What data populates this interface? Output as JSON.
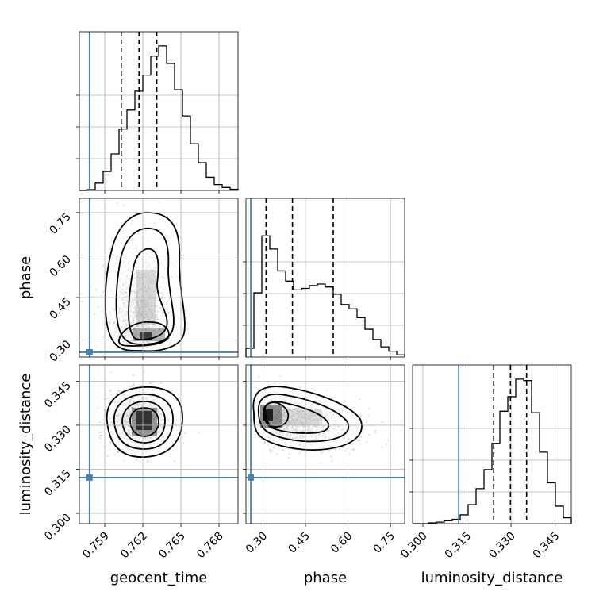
{
  "chart_data": {
    "type": "corner",
    "parameters": [
      "geocent_time",
      "phase",
      "luminosity_distance"
    ],
    "truth": {
      "geocent_time": 0.7578,
      "phase": 0.257,
      "luminosity_distance": 0.3122
    },
    "truth_color": "#4682b4",
    "axes": {
      "geocent_time": {
        "range": [
          0.757,
          0.7695
        ],
        "ticks": [
          0.759,
          0.762,
          0.765,
          0.768
        ],
        "tick_labels": [
          "0.759",
          "0.762",
          "0.765",
          "0.768"
        ]
      },
      "phase": {
        "range": [
          0.24,
          0.8
        ],
        "ticks": [
          0.3,
          0.45,
          0.6,
          0.75
        ],
        "tick_labels": [
          "0.30",
          "0.45",
          "0.60",
          "0.75"
        ]
      },
      "luminosity_distance": {
        "range": [
          0.2965,
          0.3505
        ],
        "ticks": [
          0.3,
          0.315,
          0.33,
          0.345
        ],
        "tick_labels": [
          "0.300",
          "0.315",
          "0.330",
          "0.345"
        ]
      }
    },
    "histograms": {
      "geocent_time": {
        "quantiles": [
          0.7603,
          0.7617,
          0.7631
        ],
        "heights": [
          0.0,
          0.005,
          0.05,
          0.13,
          0.25,
          0.42,
          0.55,
          0.68,
          0.79,
          0.92,
          0.99,
          0.87,
          0.69,
          0.51,
          0.32,
          0.19,
          0.09,
          0.04,
          0.02,
          0.008
        ]
      },
      "phase": {
        "quantiles": [
          0.311,
          0.404,
          0.548
        ],
        "heights": [
          0.06,
          0.44,
          0.83,
          0.74,
          0.59,
          0.52,
          0.46,
          0.47,
          0.49,
          0.5,
          0.48,
          0.43,
          0.36,
          0.33,
          0.27,
          0.19,
          0.12,
          0.07,
          0.04,
          0.015
        ]
      },
      "luminosity_distance": {
        "quantiles": [
          0.3241,
          0.3298,
          0.3353
        ],
        "heights": [
          0.0,
          0.0,
          0.005,
          0.01,
          0.02,
          0.03,
          0.06,
          0.13,
          0.24,
          0.37,
          0.55,
          0.77,
          0.87,
          0.99,
          0.98,
          0.76,
          0.49,
          0.28,
          0.12,
          0.04
        ]
      }
    },
    "contours": {
      "phase_vs_geocent_time": {
        "center": [
          0.762,
          0.31
        ],
        "levels": [
          0.39,
          0.86,
          1.18,
          1.52
        ]
      },
      "luminosity_distance_vs_geocent_time": {
        "center": [
          0.7617,
          0.332
        ],
        "levels": [
          0.39,
          0.86,
          1.18,
          1.52
        ]
      },
      "luminosity_distance_vs_phase": {
        "center": [
          0.315,
          0.3325
        ],
        "levels": [
          0.39,
          0.86,
          1.18,
          1.52
        ]
      }
    },
    "grid": true,
    "legend": "none"
  }
}
